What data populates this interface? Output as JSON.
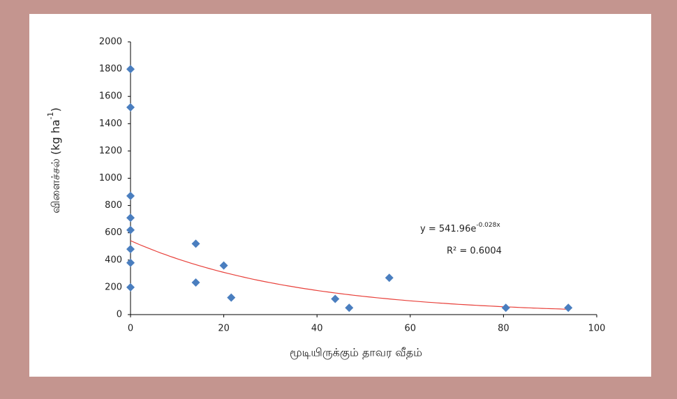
{
  "chart_data": {
    "type": "scatter",
    "xlabel": "மூடியிருக்கும்  தாவர  வீதம்",
    "ylabel": [
      "விளைச்சல்  (kg ha",
      "-1",
      ")"
    ],
    "x": [
      0,
      0,
      0,
      0,
      0,
      0,
      0,
      0,
      14,
      14,
      20,
      21.6,
      43.9,
      46.9,
      55.5,
      80.5,
      93.9
    ],
    "series": [
      {
        "color": "#4a7ebf",
        "values": [
          1800,
          1520,
          870,
          710,
          620,
          480,
          380,
          200,
          520,
          235,
          360,
          125,
          115,
          50,
          270,
          50,
          50
        ]
      }
    ],
    "trendline": {
      "type": "exponential",
      "a": 541.96,
      "k": -0.028,
      "color": "#e8403a"
    },
    "annotations": {
      "equation": "y = 541.96e",
      "equation_sup": "-0.028x",
      "r2": "R² = 0.6004"
    },
    "xlim": [
      0,
      100
    ],
    "xticks": [
      0,
      20,
      40,
      60,
      80,
      100
    ],
    "ylim": [
      0,
      2000
    ],
    "yticks": [
      0,
      200,
      400,
      600,
      800,
      1000,
      1200,
      1400,
      1600,
      1800,
      2000
    ]
  }
}
